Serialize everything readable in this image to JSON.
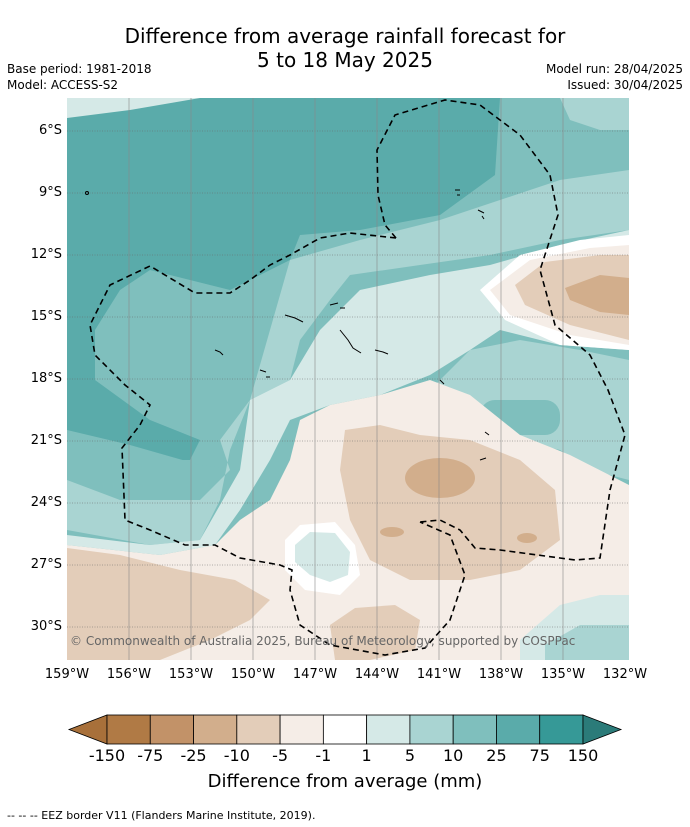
{
  "title_line1": "Difference from average rainfall forecast for",
  "title_line2": "5 to 18 May 2025",
  "meta": {
    "base_period": "Base period: 1981-2018",
    "model": "Model: ACCESS-S2",
    "model_run": "Model run: 28/04/2025",
    "issued": "Issued: 30/04/2025"
  },
  "map": {
    "lat_labels": [
      "6°S",
      "9°S",
      "12°S",
      "15°S",
      "18°S",
      "21°S",
      "24°S",
      "27°S",
      "30°S"
    ],
    "lon_labels": [
      "159°W",
      "156°W",
      "153°W",
      "150°W",
      "147°W",
      "144°W",
      "141°W",
      "138°W",
      "135°W",
      "132°W"
    ],
    "copyright": "© Commonwealth of Australia 2025, Bureau of Meteorology, supported by COSPPac"
  },
  "colorbar": {
    "ticks": [
      "-150",
      "-75",
      "-25",
      "-10",
      "-5",
      "-1",
      "1",
      "5",
      "10",
      "25",
      "75",
      "150"
    ],
    "colors": [
      "#a8703a",
      "#b07a45",
      "#c29268",
      "#d2ae8c",
      "#e3cdb9",
      "#f5ede7",
      "#ffffff",
      "#d5e9e7",
      "#a9d4d2",
      "#7fbfbd",
      "#5aabaa",
      "#369997",
      "#2b7b79"
    ],
    "title": "Difference from average (mm)"
  },
  "footnote": "-- -- -- EEZ border V11 (Flanders Marine Institute, 2019)."
}
